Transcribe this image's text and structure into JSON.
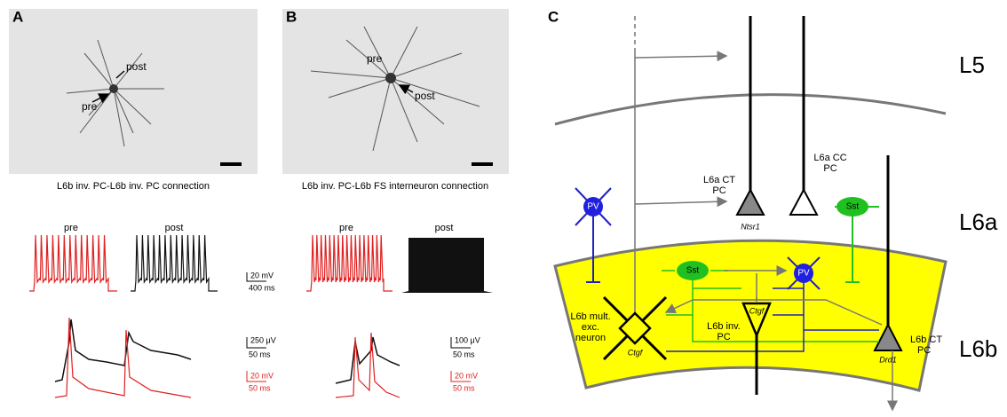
{
  "panel_a": {
    "letter": "A",
    "photo_labels": [
      "post",
      "pre"
    ],
    "caption": "L6b inv. PC-L6b inv. PC connection",
    "trace_labels": [
      "pre",
      "post"
    ],
    "scale_top": [
      "20 mV",
      "400 ms"
    ],
    "scale_bottom_black": [
      "250 μV",
      "50 ms"
    ],
    "scale_bottom_red": [
      "20 mV",
      "50 ms"
    ]
  },
  "panel_b": {
    "letter": "B",
    "photo_labels": [
      "pre",
      "post"
    ],
    "caption": "L6b inv. PC-L6b FS interneuron connection",
    "trace_labels": [
      "pre",
      "post"
    ],
    "scale_bottom_black": [
      "100 μV",
      "50 ms"
    ],
    "scale_bottom_red": [
      "20 mV",
      "50 ms"
    ]
  },
  "panel_c": {
    "letter": "C",
    "layers": [
      "L5",
      "L6a",
      "L6b"
    ],
    "nodes": [
      {
        "label": [
          "L6a CT",
          "PC"
        ],
        "marker": "Ntsr1"
      },
      {
        "label": [
          "L6a CC",
          "PC"
        ]
      },
      {
        "label": [
          "PV"
        ]
      },
      {
        "label": [
          "Sst"
        ]
      },
      {
        "label": [
          "Sst"
        ]
      },
      {
        "label": [
          "PV"
        ]
      },
      {
        "label": [
          "L6b inv.",
          "PC"
        ],
        "marker": "Ctgf"
      },
      {
        "label": [
          "L6b mult.",
          "exc.",
          "neuron"
        ],
        "marker": "Ctgf"
      },
      {
        "label": [
          "L6b CT",
          "PC"
        ],
        "marker": "Drd1"
      }
    ]
  }
}
